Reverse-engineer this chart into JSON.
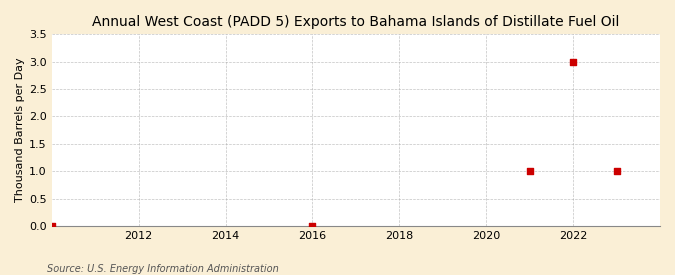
{
  "title": "Annual West Coast (PADD 5) Exports to Bahama Islands of Distillate Fuel Oil",
  "ylabel": "Thousand Barrels per Day",
  "source": "Source: U.S. Energy Information Administration",
  "background_color": "#faefd6",
  "plot_background_color": "#ffffff",
  "years": [
    2010,
    2016,
    2021,
    2022,
    2023
  ],
  "values": [
    0.0,
    0.0,
    1.0,
    3.0,
    1.0
  ],
  "marker_color": "#cc0000",
  "marker_size": 18,
  "xlim": [
    2010.0,
    2024.0
  ],
  "ylim": [
    0.0,
    3.5
  ],
  "yticks": [
    0.0,
    0.5,
    1.0,
    1.5,
    2.0,
    2.5,
    3.0,
    3.5
  ],
  "xticks": [
    2012,
    2014,
    2016,
    2018,
    2020,
    2022
  ],
  "grid_color": "#aaaaaa",
  "title_fontsize": 10,
  "label_fontsize": 8,
  "tick_fontsize": 8,
  "source_fontsize": 7
}
